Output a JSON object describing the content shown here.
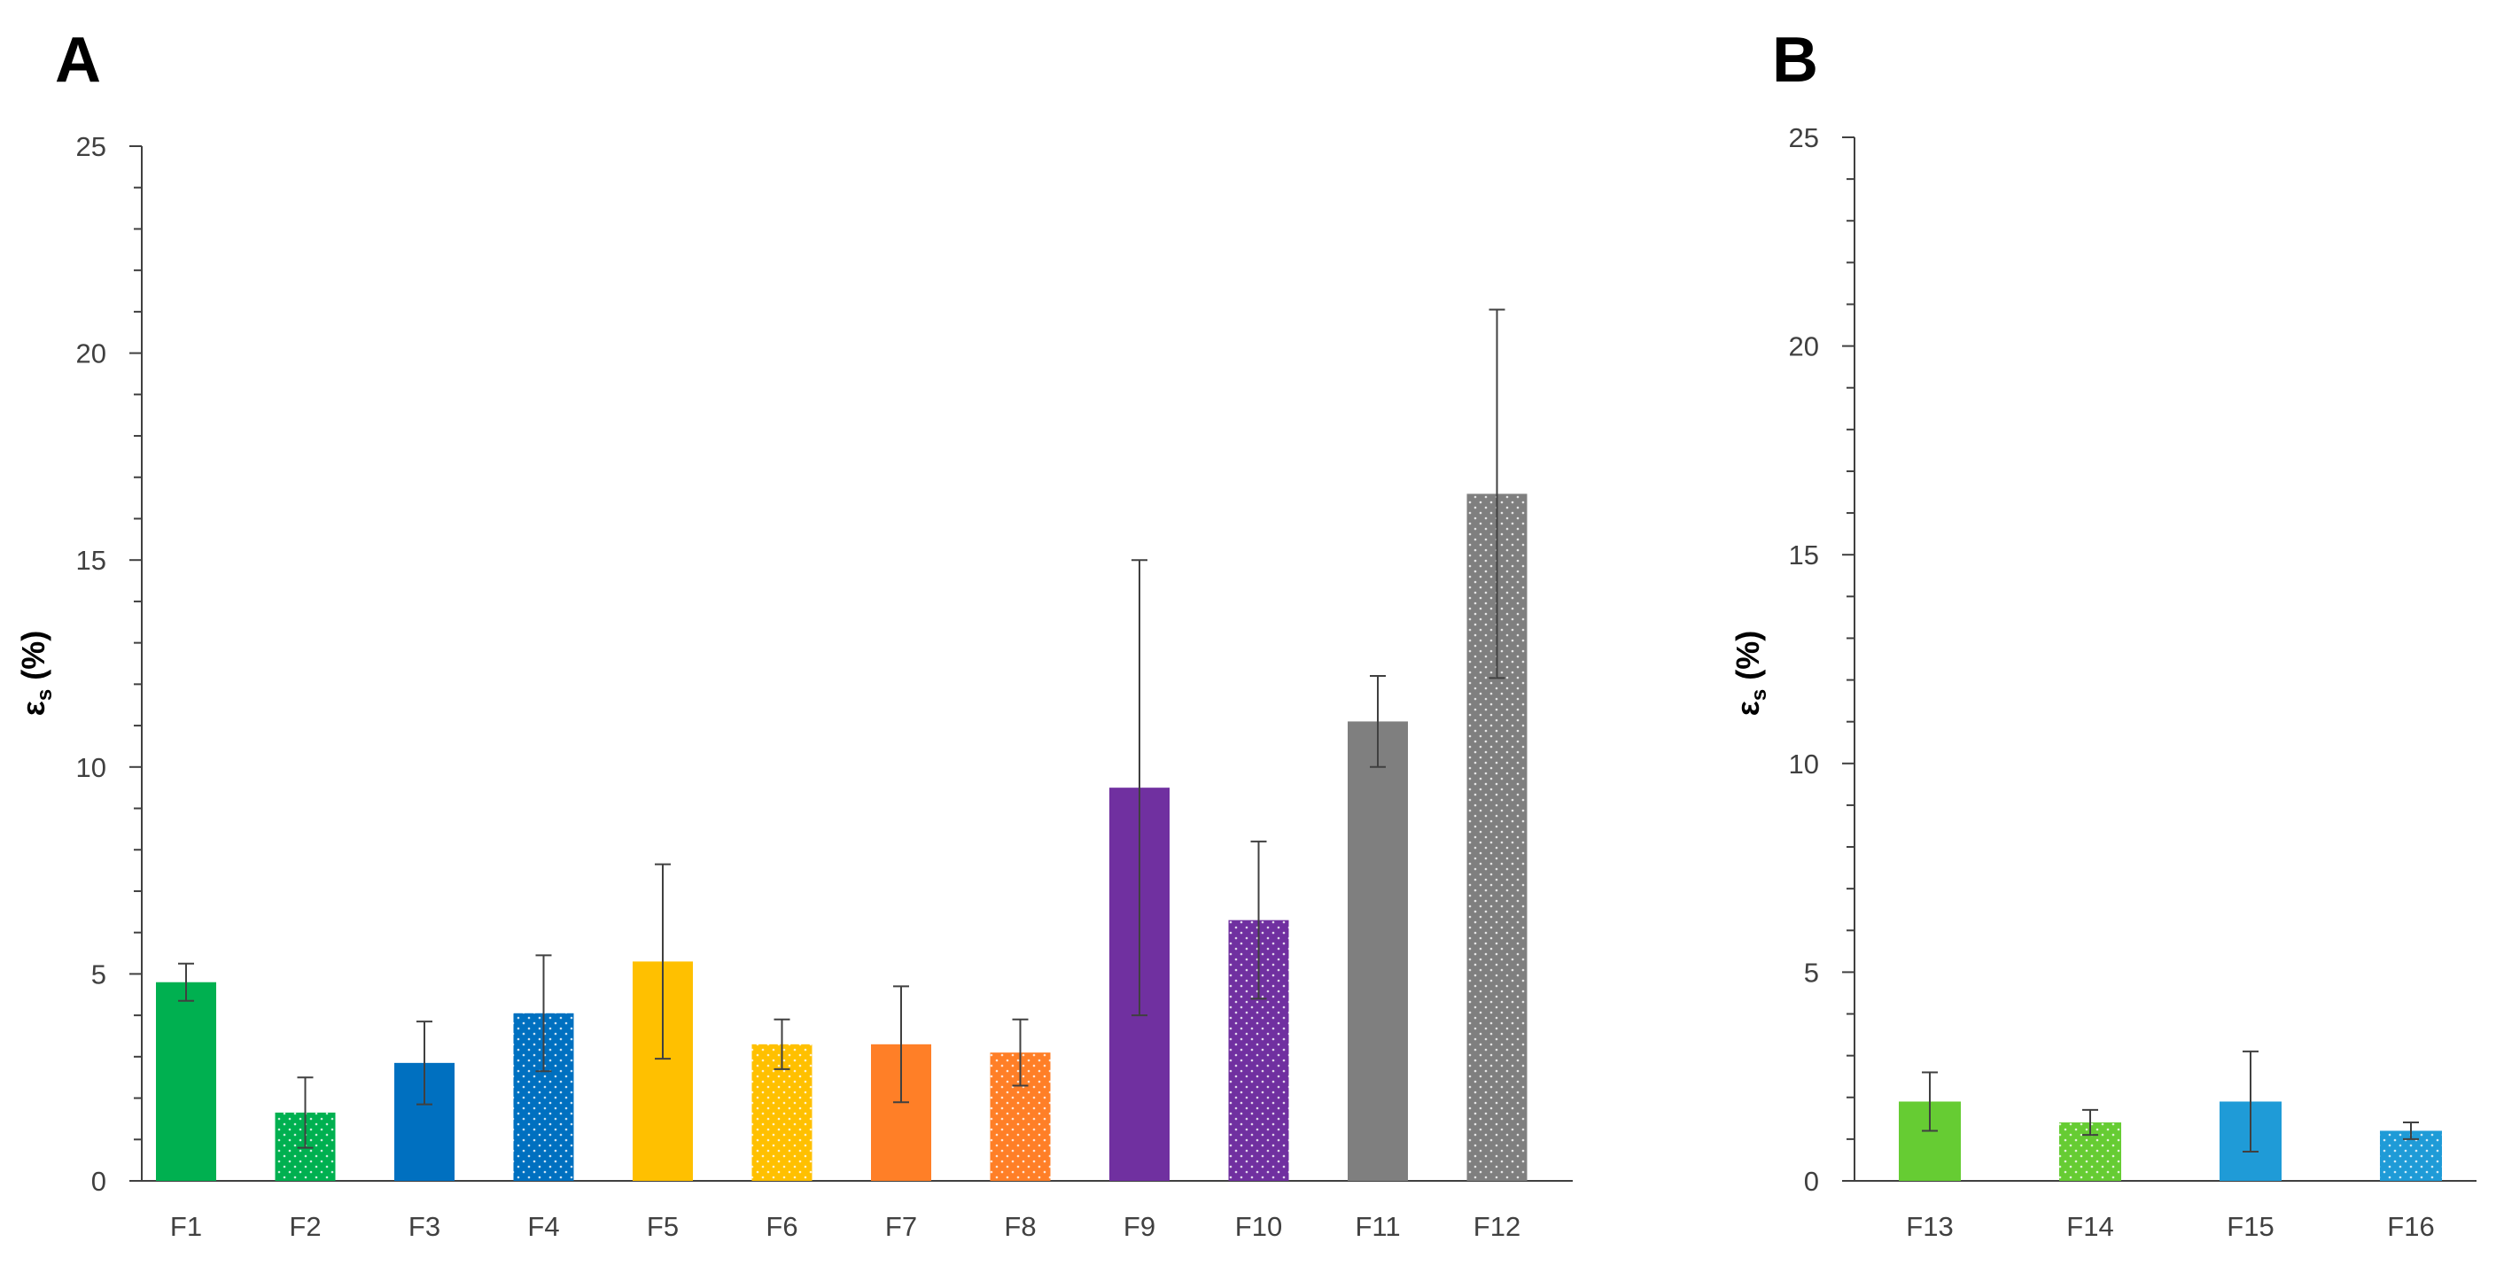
{
  "chart_data": [
    {
      "panel": "A",
      "type": "bar",
      "ylabel": "εs (%)",
      "ylabel_main": "ε",
      "ylabel_sub": "s",
      "ylabel_tail": " (%)",
      "ylim": [
        0,
        25
      ],
      "yticks": [
        0,
        5,
        10,
        15,
        20,
        25
      ],
      "categories": [
        "F1",
        "F2",
        "F3",
        "F4",
        "F5",
        "F6",
        "F7",
        "F8",
        "F9",
        "F10",
        "F11",
        "F12"
      ],
      "values": [
        4.8,
        1.65,
        2.85,
        4.05,
        5.3,
        3.3,
        3.3,
        3.1,
        9.5,
        6.3,
        11.1,
        16.6
      ],
      "errors": [
        0.45,
        0.85,
        1.0,
        1.4,
        2.35,
        0.6,
        1.4,
        0.8,
        5.5,
        1.9,
        1.1,
        4.45
      ],
      "colors": [
        "#00B050",
        "#00B050",
        "#0070C0",
        "#0070C0",
        "#FFC000",
        "#FFC000",
        "#FF7F27",
        "#FF7F27",
        "#7030A0",
        "#7030A0",
        "#7F7F7F",
        "#7F7F7F"
      ],
      "dotted": [
        false,
        true,
        false,
        true,
        false,
        true,
        false,
        true,
        false,
        true,
        false,
        true
      ]
    },
    {
      "panel": "B",
      "type": "bar",
      "ylabel": "εs (%)",
      "ylabel_main": "ε",
      "ylabel_sub": "s",
      "ylabel_tail": " (%)",
      "ylim": [
        0,
        25
      ],
      "yticks": [
        0,
        5,
        10,
        15,
        20,
        25
      ],
      "categories": [
        "F13",
        "F14",
        "F15",
        "F16"
      ],
      "values": [
        1.9,
        1.4,
        1.9,
        1.2
      ],
      "errors": [
        0.7,
        0.3,
        1.2,
        0.2
      ],
      "colors": [
        "#66CC33",
        "#66CC33",
        "#1F9BD7",
        "#1F9BD7"
      ],
      "dotted": [
        false,
        true,
        false,
        true
      ]
    }
  ]
}
